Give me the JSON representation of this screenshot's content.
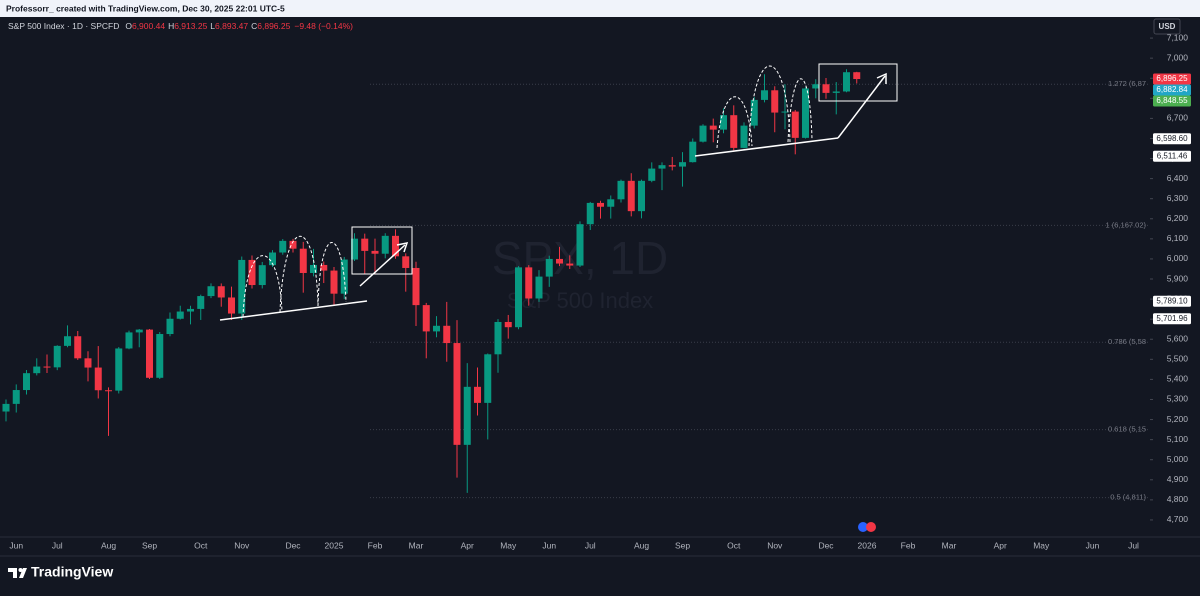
{
  "header": {
    "credit": "Professorr_ created with TradingView.com, Dec 30, 2025 22:01 UTC-5"
  },
  "chart_data": {
    "type": "candlestick",
    "symbol": "S&P 500 Index · 1D · SPCFD",
    "ohlc_legend": [
      {
        "key": "O",
        "value": "6,900.44"
      },
      {
        "key": "H",
        "value": "6,913.25"
      },
      {
        "key": "L",
        "value": "6,893.47"
      },
      {
        "key": "C",
        "value": "6,896.25"
      }
    ],
    "change": "−9.48 (−0.14%)",
    "watermark": "SPX, 1D",
    "watermark_subtitle": "S&P 500 Index",
    "currency": "USD",
    "up_color": "#089981",
    "down_color": "#f23645",
    "categories": [
      null,
      "Jun",
      null,
      null,
      null,
      "Jul",
      null,
      null,
      null,
      null,
      "Aug",
      null,
      null,
      null,
      "Sep",
      null,
      null,
      null,
      null,
      "Oct",
      null,
      null,
      null,
      "Nov",
      null,
      null,
      null,
      null,
      "Dec",
      null,
      null,
      null,
      "2025",
      null,
      null,
      null,
      "Feb",
      null,
      null,
      null,
      "Mar",
      null,
      null,
      null,
      null,
      "Apr",
      null,
      null,
      null,
      "May",
      null,
      null,
      null,
      "Jun",
      null,
      null,
      null,
      "Jul",
      null,
      null,
      null,
      null,
      "Aug",
      null,
      null,
      null,
      "Sep",
      null,
      null,
      null,
      null,
      "Oct",
      null,
      null,
      null,
      "Nov",
      null,
      null,
      null,
      null,
      "Dec",
      null,
      null,
      null,
      "2026",
      null,
      null,
      null,
      "Feb",
      null,
      null,
      null,
      "Mar",
      null,
      null,
      null,
      null,
      "Apr",
      null,
      null,
      null,
      "May",
      null,
      null,
      null,
      null,
      "Jun",
      null,
      null,
      null,
      "Jul",
      null,
      null
    ],
    "open": [
      5240,
      5278,
      5347,
      5431,
      5464,
      5460,
      5567,
      5615,
      5505,
      5459,
      5346,
      5344,
      5554,
      5634,
      5648,
      5408,
      5626,
      5702,
      5738,
      5751,
      5815,
      5864,
      5808,
      5728,
      5995,
      5870,
      5969,
      6032,
      6090,
      6051,
      5930,
      5970,
      5942,
      5827,
      5997,
      6101,
      6040,
      6026,
      6115,
      6013,
      5955,
      5770,
      5639,
      5667,
      5581,
      5074,
      5363,
      5283,
      5525,
      5686,
      5660,
      5958,
      5803,
      5912,
      6000,
      5977,
      5967,
      6173,
      6279,
      6260,
      6297,
      6389,
      6238,
      6389,
      6450,
      6467,
      6460,
      6482,
      6584,
      6664,
      6644,
      6716,
      6553,
      6664,
      6792,
      6840,
      6729,
      6734,
      6603,
      6849,
      6870,
      6827,
      6834,
      6930,
      null,
      null,
      null,
      null,
      null,
      null,
      null,
      null,
      null,
      null,
      null,
      null,
      null,
      null,
      null,
      null,
      null,
      null,
      null,
      null,
      null,
      null,
      null,
      null,
      null,
      null,
      null,
      null,
      null
    ],
    "high": [
      5300,
      5375,
      5447,
      5505,
      5524,
      5570,
      5669,
      5641,
      5540,
      5566,
      5360,
      5561,
      5643,
      5651,
      5651,
      5636,
      5733,
      5767,
      5767,
      5822,
      5878,
      5878,
      5862,
      6012,
      6017,
      5985,
      6044,
      6099,
      6100,
      6085,
      6050,
      5987,
      5960,
      6010,
      6128,
      6126,
      6101,
      6128,
      6147,
      6028,
      5986,
      5781,
      5715,
      5786,
      5695,
      5481,
      5459,
      5529,
      5700,
      5721,
      5964,
      5969,
      5944,
      6016,
      6060,
      6018,
      6187,
      6284,
      6290,
      6316,
      6395,
      6427,
      6395,
      6481,
      6481,
      6508,
      6532,
      6600,
      6671,
      6699,
      6750,
      6765,
      6680,
      6807,
      6920,
      6860,
      6870,
      6742,
      6855,
      6895,
      6901,
      6881,
      6945,
      6932,
      null,
      null,
      null,
      null,
      null,
      null,
      null,
      null,
      null,
      null,
      null,
      null,
      null,
      null,
      null,
      null,
      null,
      null,
      null,
      null,
      null,
      null,
      null,
      null,
      null,
      null,
      null,
      null,
      null
    ],
    "low": [
      5191,
      5235,
      5325,
      5420,
      5432,
      5446,
      5560,
      5497,
      5390,
      5305,
      5119,
      5330,
      5550,
      5560,
      5402,
      5402,
      5615,
      5698,
      5674,
      5696,
      5805,
      5762,
      5696,
      5696,
      5853,
      5853,
      5960,
      6021,
      6032,
      5832,
      5913,
      5880,
      5773,
      5800,
      5990,
      5923,
      5923,
      6003,
      6001,
      5837,
      5666,
      5505,
      5610,
      5488,
      4911,
      4835,
      5220,
      5101,
      5433,
      5603,
      5650,
      5767,
      5786,
      5861,
      5964,
      5950,
      5960,
      6144,
      6201,
      6201,
      6281,
      6212,
      6202,
      6382,
      6343,
      6441,
      6360,
      6480,
      6580,
      6581,
      6626,
      6541,
      6551,
      6650,
      6780,
      6631,
      6646,
      6521,
      6600,
      6800,
      6798,
      6720,
      6830,
      6874,
      null,
      null,
      null,
      null,
      null,
      null,
      null,
      null,
      null,
      null,
      null,
      null,
      null,
      null,
      null,
      null,
      null,
      null,
      null,
      null,
      null,
      null,
      null,
      null,
      null,
      null,
      null,
      null,
      null
    ],
    "close": [
      5278,
      5347,
      5431,
      5464,
      5460,
      5567,
      5615,
      5505,
      5459,
      5346,
      5344,
      5554,
      5634,
      5648,
      5408,
      5626,
      5702,
      5738,
      5751,
      5815,
      5864,
      5808,
      5728,
      5995,
      5870,
      5969,
      6032,
      6090,
      6051,
      5930,
      5970,
      5942,
      5827,
      5997,
      6101,
      6040,
      6026,
      6115,
      6013,
      5955,
      5770,
      5639,
      5667,
      5581,
      5074,
      5363,
      5283,
      5525,
      5686,
      5660,
      5958,
      5803,
      5912,
      6000,
      5977,
      5967,
      6173,
      6279,
      6260,
      6297,
      6389,
      6238,
      6389,
      6450,
      6467,
      6460,
      6482,
      6584,
      6664,
      6644,
      6716,
      6553,
      6664,
      6792,
      6840,
      6729,
      6734,
      6603,
      6849,
      6870,
      6827,
      6834,
      6930,
      6896,
      null,
      null,
      null,
      null,
      null,
      null,
      null,
      null,
      null,
      null,
      null,
      null,
      null,
      null,
      null,
      null,
      null,
      null,
      null,
      null,
      null,
      null,
      null,
      null,
      null,
      null,
      null,
      null,
      null
    ],
    "ylim": [
      4625,
      7200
    ],
    "yticks": [
      {
        "value": 4700,
        "label": "4,700"
      },
      {
        "value": 4800,
        "label": "4,800"
      },
      {
        "value": 4900,
        "label": "4,900"
      },
      {
        "value": 5000,
        "label": "5,000"
      },
      {
        "value": 5100,
        "label": "5,100"
      },
      {
        "value": 5200,
        "label": "5,200"
      },
      {
        "value": 5300,
        "label": "5,300"
      },
      {
        "value": 5400,
        "label": "5,400"
      },
      {
        "value": 5500,
        "label": "5,500"
      },
      {
        "value": 5600,
        "label": "5,600"
      },
      {
        "value": 5700,
        "label": "5,700"
      },
      {
        "value": 5800,
        "label": "5,800"
      },
      {
        "value": 5900,
        "label": "5,900"
      },
      {
        "value": 6000,
        "label": "6,000"
      },
      {
        "value": 6100,
        "label": "6,100"
      },
      {
        "value": 6200,
        "label": "6,200"
      },
      {
        "value": 6300,
        "label": "6,300"
      },
      {
        "value": 6400,
        "label": "6,400"
      },
      {
        "value": 6500,
        "label": "6,500"
      },
      {
        "value": 6600,
        "label": "6,600"
      },
      {
        "value": 6700,
        "label": "6,700"
      },
      {
        "value": 6800,
        "label": "6,800"
      },
      {
        "value": 6900,
        "label": "6,900"
      },
      {
        "value": 7000,
        "label": "7,000"
      },
      {
        "value": 7100,
        "label": "7,100"
      }
    ],
    "fib_levels": [
      {
        "value": 6870,
        "label": "1.272 (6,87"
      },
      {
        "value": 6167.02,
        "label": "1 (6,167.02)"
      },
      {
        "value": 5585,
        "label": "0.786 (5,58"
      },
      {
        "value": 5150,
        "label": "0.618 (5,15"
      },
      {
        "value": 4811,
        "label": "0.5 (4,811)"
      }
    ],
    "price_tags": [
      {
        "value": 6896.25,
        "label": "6,896.25",
        "color": "#f23645"
      },
      {
        "value": 6882.84,
        "label": "6,882.84",
        "color": "#22a6c6"
      },
      {
        "value": 6848.55,
        "label": "6,848.55",
        "color": "#4caf50"
      },
      {
        "value": 6598.6,
        "label": "6,598.60",
        "color": "#ffffff"
      },
      {
        "value": 6511.46,
        "label": "6,511.46",
        "color": "#ffffff"
      },
      {
        "value": 5789.1,
        "label": "5,789.10",
        "color": "#ffffff"
      },
      {
        "value": 5701.96,
        "label": "5,701.96",
        "color": "#ffffff"
      }
    ]
  },
  "footer": {
    "logo": "TradingView"
  }
}
